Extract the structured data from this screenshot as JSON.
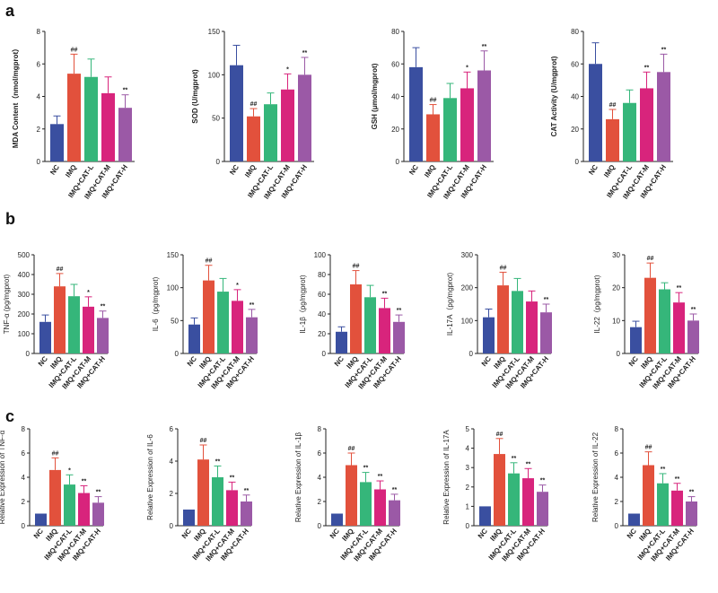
{
  "panels": [
    {
      "label": "a"
    },
    {
      "label": "b"
    },
    {
      "label": "c"
    }
  ],
  "colors": {
    "NC": "#3a4fa0",
    "IMQ": "#e2513c",
    "IMQ+CAT-L": "#35b67a",
    "IMQ+CAT-M": "#d8247c",
    "IMQ+CAT-H": "#9b59a6",
    "axis": "#222222"
  },
  "chart_data": [
    {
      "type": "bar",
      "row": 0,
      "ylabel": "MDA Content（nmol/mgprot）",
      "ylim": [
        0,
        8
      ],
      "yticks": [
        0,
        2,
        4,
        6,
        8
      ],
      "categories": [
        "NC",
        "IMQ",
        "IMQ+CAT-L",
        "IMQ+CAT-M",
        "IMQ+CAT-H"
      ],
      "values": [
        2.3,
        5.4,
        5.2,
        4.2,
        3.3
      ],
      "errors": [
        0.5,
        1.2,
        1.1,
        1.0,
        0.8
      ],
      "labels": [
        "",
        "##",
        "",
        "",
        "**"
      ]
    },
    {
      "type": "bar",
      "row": 0,
      "ylabel": "SOD (U/mgprot)",
      "ylim": [
        0,
        150
      ],
      "yticks": [
        0,
        50,
        100,
        150
      ],
      "categories": [
        "NC",
        "IMQ",
        "IMQ+CAT-L",
        "IMQ+CAT-M",
        "IMQ+CAT-H"
      ],
      "values": [
        111,
        52,
        66,
        83,
        100
      ],
      "errors": [
        23,
        9,
        13,
        18,
        20
      ],
      "labels": [
        "",
        "##",
        "",
        "*",
        "**"
      ]
    },
    {
      "type": "bar",
      "row": 0,
      "ylabel": "GSH (μmol/mgprot)",
      "ylim": [
        0,
        80
      ],
      "yticks": [
        0,
        20,
        40,
        60,
        80
      ],
      "categories": [
        "NC",
        "IMQ",
        "IMQ+CAT-L",
        "IMQ+CAT-M",
        "IMQ+CAT-H"
      ],
      "values": [
        58,
        29,
        39,
        45,
        56
      ],
      "errors": [
        12,
        6,
        9,
        10,
        12
      ],
      "labels": [
        "",
        "##",
        "",
        "*",
        "**"
      ]
    },
    {
      "type": "bar",
      "row": 0,
      "ylabel": "CAT Activity (U/mgprot)",
      "ylim": [
        0,
        80
      ],
      "yticks": [
        0,
        20,
        40,
        60,
        80
      ],
      "categories": [
        "NC",
        "IMQ",
        "IMQ+CAT-L",
        "IMQ+CAT-M",
        "IMQ+CAT-H"
      ],
      "values": [
        60,
        26,
        36,
        45,
        55
      ],
      "errors": [
        13,
        6,
        8,
        10,
        11
      ],
      "labels": [
        "",
        "##",
        "",
        "**",
        "**"
      ]
    },
    {
      "type": "bar",
      "row": 1,
      "ylabel": "TNF-α (pg/mgprot)",
      "ylim": [
        0,
        500
      ],
      "yticks": [
        0,
        100,
        200,
        300,
        400,
        500
      ],
      "categories": [
        "NC",
        "IMQ",
        "IMQ+CAT-L",
        "IMQ+CAT-M",
        "IMQ+CAT-H"
      ],
      "values": [
        160,
        340,
        290,
        237,
        180
      ],
      "errors": [
        35,
        65,
        60,
        50,
        35
      ],
      "labels": [
        "",
        "##",
        "",
        "*",
        "**"
      ]
    },
    {
      "type": "bar",
      "row": 1,
      "ylabel": "IL-6（pg/mgprot)",
      "ylim": [
        0,
        150
      ],
      "yticks": [
        0,
        50,
        100,
        150
      ],
      "categories": [
        "NC",
        "IMQ",
        "IMQ+CAT-L",
        "IMQ+CAT-M",
        "IMQ+CAT-H"
      ],
      "values": [
        44,
        111,
        94,
        80,
        55
      ],
      "errors": [
        10,
        23,
        20,
        17,
        12
      ],
      "labels": [
        "",
        "##",
        "",
        "*",
        "**"
      ]
    },
    {
      "type": "bar",
      "row": 1,
      "ylabel": "IL-1β（pg/mgprot)",
      "ylim": [
        0,
        100
      ],
      "yticks": [
        0,
        20,
        40,
        60,
        80,
        100
      ],
      "categories": [
        "NC",
        "IMQ",
        "IMQ+CAT-L",
        "IMQ+CAT-M",
        "IMQ+CAT-H"
      ],
      "values": [
        22,
        70,
        57,
        46,
        32
      ],
      "errors": [
        5,
        14,
        12,
        10,
        7
      ],
      "labels": [
        "",
        "##",
        "",
        "**",
        "**"
      ]
    },
    {
      "type": "bar",
      "row": 1,
      "ylabel": "IL-17A（pg/mgprot)",
      "ylim": [
        0,
        300
      ],
      "yticks": [
        0,
        100,
        200,
        300
      ],
      "categories": [
        "NC",
        "IMQ",
        "IMQ+CAT-L",
        "IMQ+CAT-M",
        "IMQ+CAT-H"
      ],
      "values": [
        110,
        207,
        190,
        158,
        125
      ],
      "errors": [
        25,
        40,
        38,
        32,
        25
      ],
      "labels": [
        "",
        "##",
        "",
        "",
        "**"
      ]
    },
    {
      "type": "bar",
      "row": 1,
      "ylabel": "IL-22（pg/mgprot)",
      "ylim": [
        0,
        30
      ],
      "yticks": [
        0,
        10,
        20,
        30
      ],
      "categories": [
        "NC",
        "IMQ",
        "IMQ+CAT-L",
        "IMQ+CAT-M",
        "IMQ+CAT-H"
      ],
      "values": [
        8,
        23,
        19.5,
        15.5,
        10
      ],
      "errors": [
        1.8,
        4.5,
        2,
        3,
        2
      ],
      "labels": [
        "",
        "##",
        "",
        "**",
        "**"
      ]
    },
    {
      "type": "bar",
      "row": 2,
      "ylabel": "Relative Expression of TNF-α",
      "ylim": [
        0,
        8
      ],
      "yticks": [
        0,
        2,
        4,
        6,
        8
      ],
      "categories": [
        "NC",
        "IMQ",
        "IMQ+CAT-L",
        "IMQ+CAT-M",
        "IMQ+CAT-H"
      ],
      "values": [
        1,
        4.6,
        3.4,
        2.7,
        1.9
      ],
      "errors": [
        0,
        1.0,
        0.8,
        0.6,
        0.5
      ],
      "labels": [
        "",
        "##",
        "*",
        "**",
        "**"
      ]
    },
    {
      "type": "bar",
      "row": 2,
      "ylabel": "Relative Expression of IL-6",
      "ylim": [
        0,
        6
      ],
      "yticks": [
        0,
        2,
        4,
        6
      ],
      "categories": [
        "NC",
        "IMQ",
        "IMQ+CAT-L",
        "IMQ+CAT-M",
        "IMQ+CAT-H"
      ],
      "values": [
        1,
        4.1,
        3.0,
        2.2,
        1.5
      ],
      "errors": [
        0,
        0.9,
        0.7,
        0.5,
        0.4
      ],
      "labels": [
        "",
        "##",
        "**",
        "**",
        "**"
      ]
    },
    {
      "type": "bar",
      "row": 2,
      "ylabel": "Relative Expression of IL-1β",
      "ylim": [
        0,
        8
      ],
      "yticks": [
        0,
        2,
        4,
        6,
        8
      ],
      "categories": [
        "NC",
        "IMQ",
        "IMQ+CAT-L",
        "IMQ+CAT-M",
        "IMQ+CAT-H"
      ],
      "values": [
        1,
        5.0,
        3.6,
        3.0,
        2.1
      ],
      "errors": [
        0,
        1.0,
        0.8,
        0.7,
        0.5
      ],
      "labels": [
        "",
        "##",
        "**",
        "**",
        "**"
      ]
    },
    {
      "type": "bar",
      "row": 2,
      "ylabel": "Relative Expression of IL-17A",
      "ylim": [
        0,
        5
      ],
      "yticks": [
        0,
        1,
        2,
        3,
        4,
        5
      ],
      "categories": [
        "NC",
        "IMQ",
        "IMQ+CAT-L",
        "IMQ+CAT-M",
        "IMQ+CAT-H"
      ],
      "values": [
        1,
        3.7,
        2.7,
        2.45,
        1.75
      ],
      "errors": [
        0,
        0.8,
        0.55,
        0.5,
        0.35
      ],
      "labels": [
        "",
        "##",
        "**",
        "**",
        "**"
      ]
    },
    {
      "type": "bar",
      "row": 2,
      "ylabel": "Relative Expression of IL-22",
      "ylim": [
        0,
        8
      ],
      "yticks": [
        0,
        2,
        4,
        6,
        8
      ],
      "categories": [
        "NC",
        "IMQ",
        "IMQ+CAT-L",
        "IMQ+CAT-M",
        "IMQ+CAT-H"
      ],
      "values": [
        1,
        5.0,
        3.5,
        2.9,
        2.0
      ],
      "errors": [
        0,
        1.1,
        0.8,
        0.6,
        0.4
      ],
      "labels": [
        "",
        "##",
        "**",
        "**",
        "**"
      ]
    }
  ]
}
